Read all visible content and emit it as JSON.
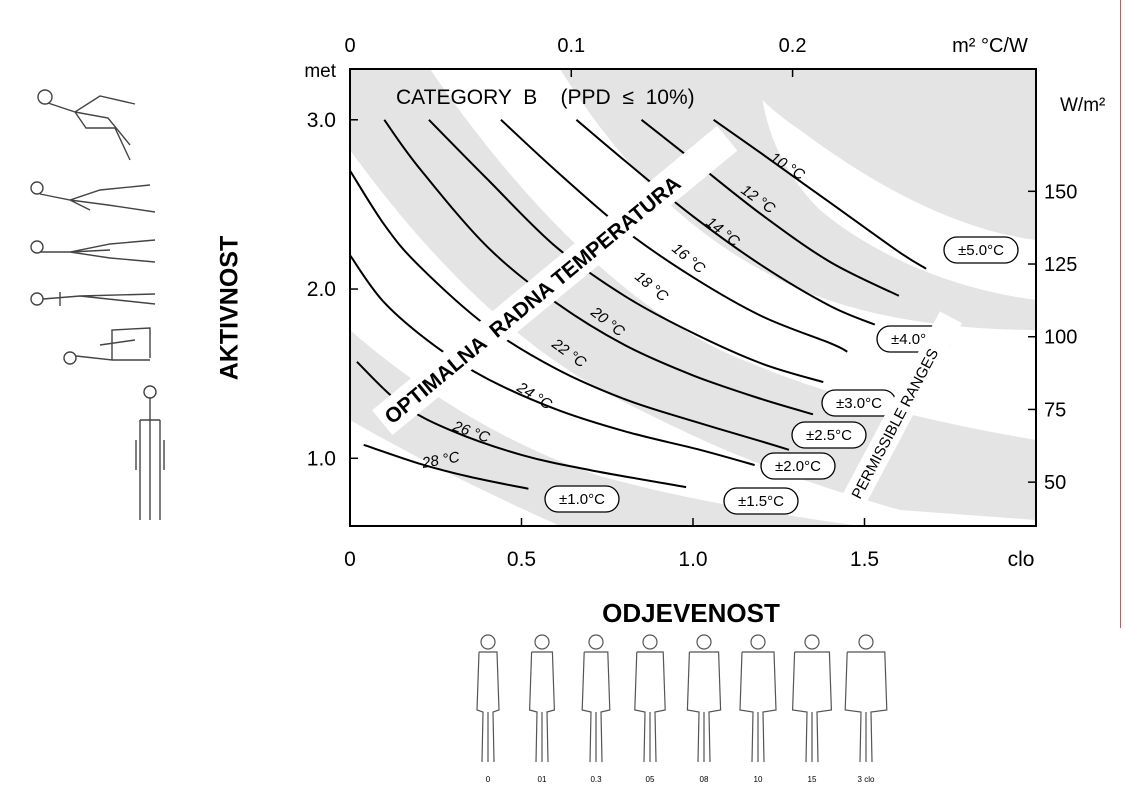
{
  "chart_data": {
    "type": "line",
    "title": "CATEGORY  B    (PPD  ≤  10%)",
    "xlabel": "ODJEVENOST",
    "ylabel": "AKTIVNOST",
    "x_unit": "clo",
    "y_unit": "met",
    "xlim": [
      0,
      2.0
    ],
    "ylim": [
      0.6,
      3.3
    ],
    "x_ticks": [
      {
        "v": 0,
        "label": "0"
      },
      {
        "v": 0.5,
        "label": "0.5"
      },
      {
        "v": 1.0,
        "label": "1.0"
      },
      {
        "v": 1.5,
        "label": "1.5"
      }
    ],
    "y_ticks": [
      {
        "v": 1.0,
        "label": "1.0"
      },
      {
        "v": 2.0,
        "label": "2.0"
      },
      {
        "v": 3.0,
        "label": "3.0"
      }
    ],
    "top_axis": {
      "unit": "m² °C/W",
      "ticks": [
        {
          "v": 0,
          "label": "0"
        },
        {
          "v": 0.1,
          "label": "0.1"
        },
        {
          "v": 0.2,
          "label": "0.2"
        }
      ]
    },
    "right_axis": {
      "unit": "W/m²",
      "ticks": [
        {
          "v": 50,
          "label": "50"
        },
        {
          "v": 75,
          "label": "75"
        },
        {
          "v": 100,
          "label": "100"
        },
        {
          "v": 125,
          "label": "125"
        },
        {
          "v": 150,
          "label": "150"
        }
      ]
    },
    "series": [
      {
        "name": "28 °C",
        "points": [
          [
            0.04,
            1.08
          ],
          [
            0.2,
            0.97
          ],
          [
            0.35,
            0.89
          ],
          [
            0.52,
            0.82
          ]
        ]
      },
      {
        "name": "26 °C",
        "points": [
          [
            0.02,
            1.57
          ],
          [
            0.15,
            1.32
          ],
          [
            0.3,
            1.16
          ],
          [
            0.5,
            1.02
          ],
          [
            0.7,
            0.93
          ],
          [
            0.98,
            0.83
          ]
        ]
      },
      {
        "name": "24 °C",
        "points": [
          [
            0,
            2.2
          ],
          [
            0.1,
            1.92
          ],
          [
            0.25,
            1.66
          ],
          [
            0.4,
            1.47
          ],
          [
            0.6,
            1.29
          ],
          [
            0.8,
            1.16
          ],
          [
            1.02,
            1.05
          ],
          [
            1.18,
            0.96
          ]
        ]
      },
      {
        "name": "22 °C",
        "points": [
          [
            0,
            2.7
          ],
          [
            0.1,
            2.38
          ],
          [
            0.2,
            2.14
          ],
          [
            0.4,
            1.78
          ],
          [
            0.6,
            1.53
          ],
          [
            0.8,
            1.35
          ],
          [
            1.0,
            1.22
          ],
          [
            1.2,
            1.1
          ],
          [
            1.28,
            1.05
          ]
        ]
      },
      {
        "name": "20 °C",
        "points": [
          [
            0.1,
            3.0
          ],
          [
            0.2,
            2.72
          ],
          [
            0.4,
            2.25
          ],
          [
            0.6,
            1.92
          ],
          [
            0.8,
            1.67
          ],
          [
            1.0,
            1.49
          ],
          [
            1.2,
            1.35
          ],
          [
            1.35,
            1.26
          ]
        ]
      },
      {
        "name": "18 °C",
        "points": [
          [
            0.23,
            3.0
          ],
          [
            0.4,
            2.65
          ],
          [
            0.6,
            2.25
          ],
          [
            0.8,
            1.96
          ],
          [
            1.0,
            1.74
          ],
          [
            1.2,
            1.56
          ],
          [
            1.38,
            1.45
          ]
        ]
      },
      {
        "name": "16 °C",
        "points": [
          [
            0.44,
            3.0
          ],
          [
            0.6,
            2.7
          ],
          [
            0.8,
            2.35
          ],
          [
            1.0,
            2.07
          ],
          [
            1.2,
            1.84
          ],
          [
            1.4,
            1.68
          ],
          [
            1.45,
            1.63
          ]
        ]
      },
      {
        "name": "14 °C",
        "points": [
          [
            0.66,
            3.0
          ],
          [
            0.8,
            2.76
          ],
          [
            1.0,
            2.43
          ],
          [
            1.2,
            2.14
          ],
          [
            1.4,
            1.9
          ],
          [
            1.53,
            1.79
          ]
        ]
      },
      {
        "name": "12 °C",
        "points": [
          [
            0.85,
            3.0
          ],
          [
            1.0,
            2.76
          ],
          [
            1.2,
            2.44
          ],
          [
            1.4,
            2.16
          ],
          [
            1.6,
            1.96
          ]
        ]
      },
      {
        "name": "10 °C",
        "points": [
          [
            1.06,
            3.0
          ],
          [
            1.2,
            2.8
          ],
          [
            1.4,
            2.51
          ],
          [
            1.6,
            2.22
          ],
          [
            1.68,
            2.12
          ]
        ]
      }
    ],
    "curve_labels": [
      "28 °C",
      "26 °C",
      "24 °C",
      "22 °C",
      "20 °C",
      "18 °C",
      "16 °C",
      "14 °C",
      "12 °C",
      "10 °C"
    ],
    "range_badges": [
      "±1.0°C",
      "±1.5°C",
      "±2.0°C",
      "±2.5°C",
      "±3.0°C",
      "±4.0°C",
      "±5.0°C"
    ],
    "annotations": {
      "optimal": "OPTIMALNA  RADNA TEMPERATURA",
      "ranges": "PERMISSIBLE RANGES"
    },
    "grid": false,
    "legend": "none"
  },
  "colors": {
    "band": "#e4e4e4",
    "line": "#000000",
    "plot_bg": "#ffffff"
  },
  "clothing_values": [
    "0",
    "01",
    "0.3",
    "05",
    "08",
    "10",
    "15",
    "3 clo"
  ]
}
